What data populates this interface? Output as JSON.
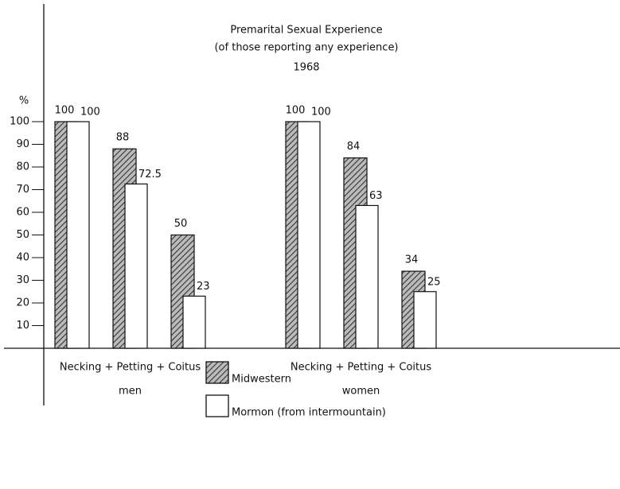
{
  "chart_data": {
    "type": "grouped_bar",
    "title": "Premarital Sexual Experience",
    "subtitle": "(of those reporting any experience)",
    "annotation": "1968",
    "ylabel": "%",
    "groups": [
      "men",
      "women"
    ],
    "group_axis_labels": [
      "Necking + Petting + Coitus",
      "Necking + Petting + Coitus"
    ],
    "bars_per_group": 3,
    "series": [
      {
        "name": "Midwestern",
        "color": "#333333",
        "fill": "hatch",
        "values": [
          100,
          88,
          50,
          100,
          84,
          34
        ]
      },
      {
        "name": "Mormon (from intermountain)",
        "color": "#ffffff",
        "fill": "solid",
        "values": [
          100,
          72.5,
          23,
          100,
          63,
          25
        ]
      }
    ],
    "ylim": [
      0,
      100
    ],
    "yticks": [
      10,
      20,
      30,
      40,
      50,
      60,
      70,
      80,
      90,
      100
    ],
    "legend": "bottom",
    "grid": false
  }
}
